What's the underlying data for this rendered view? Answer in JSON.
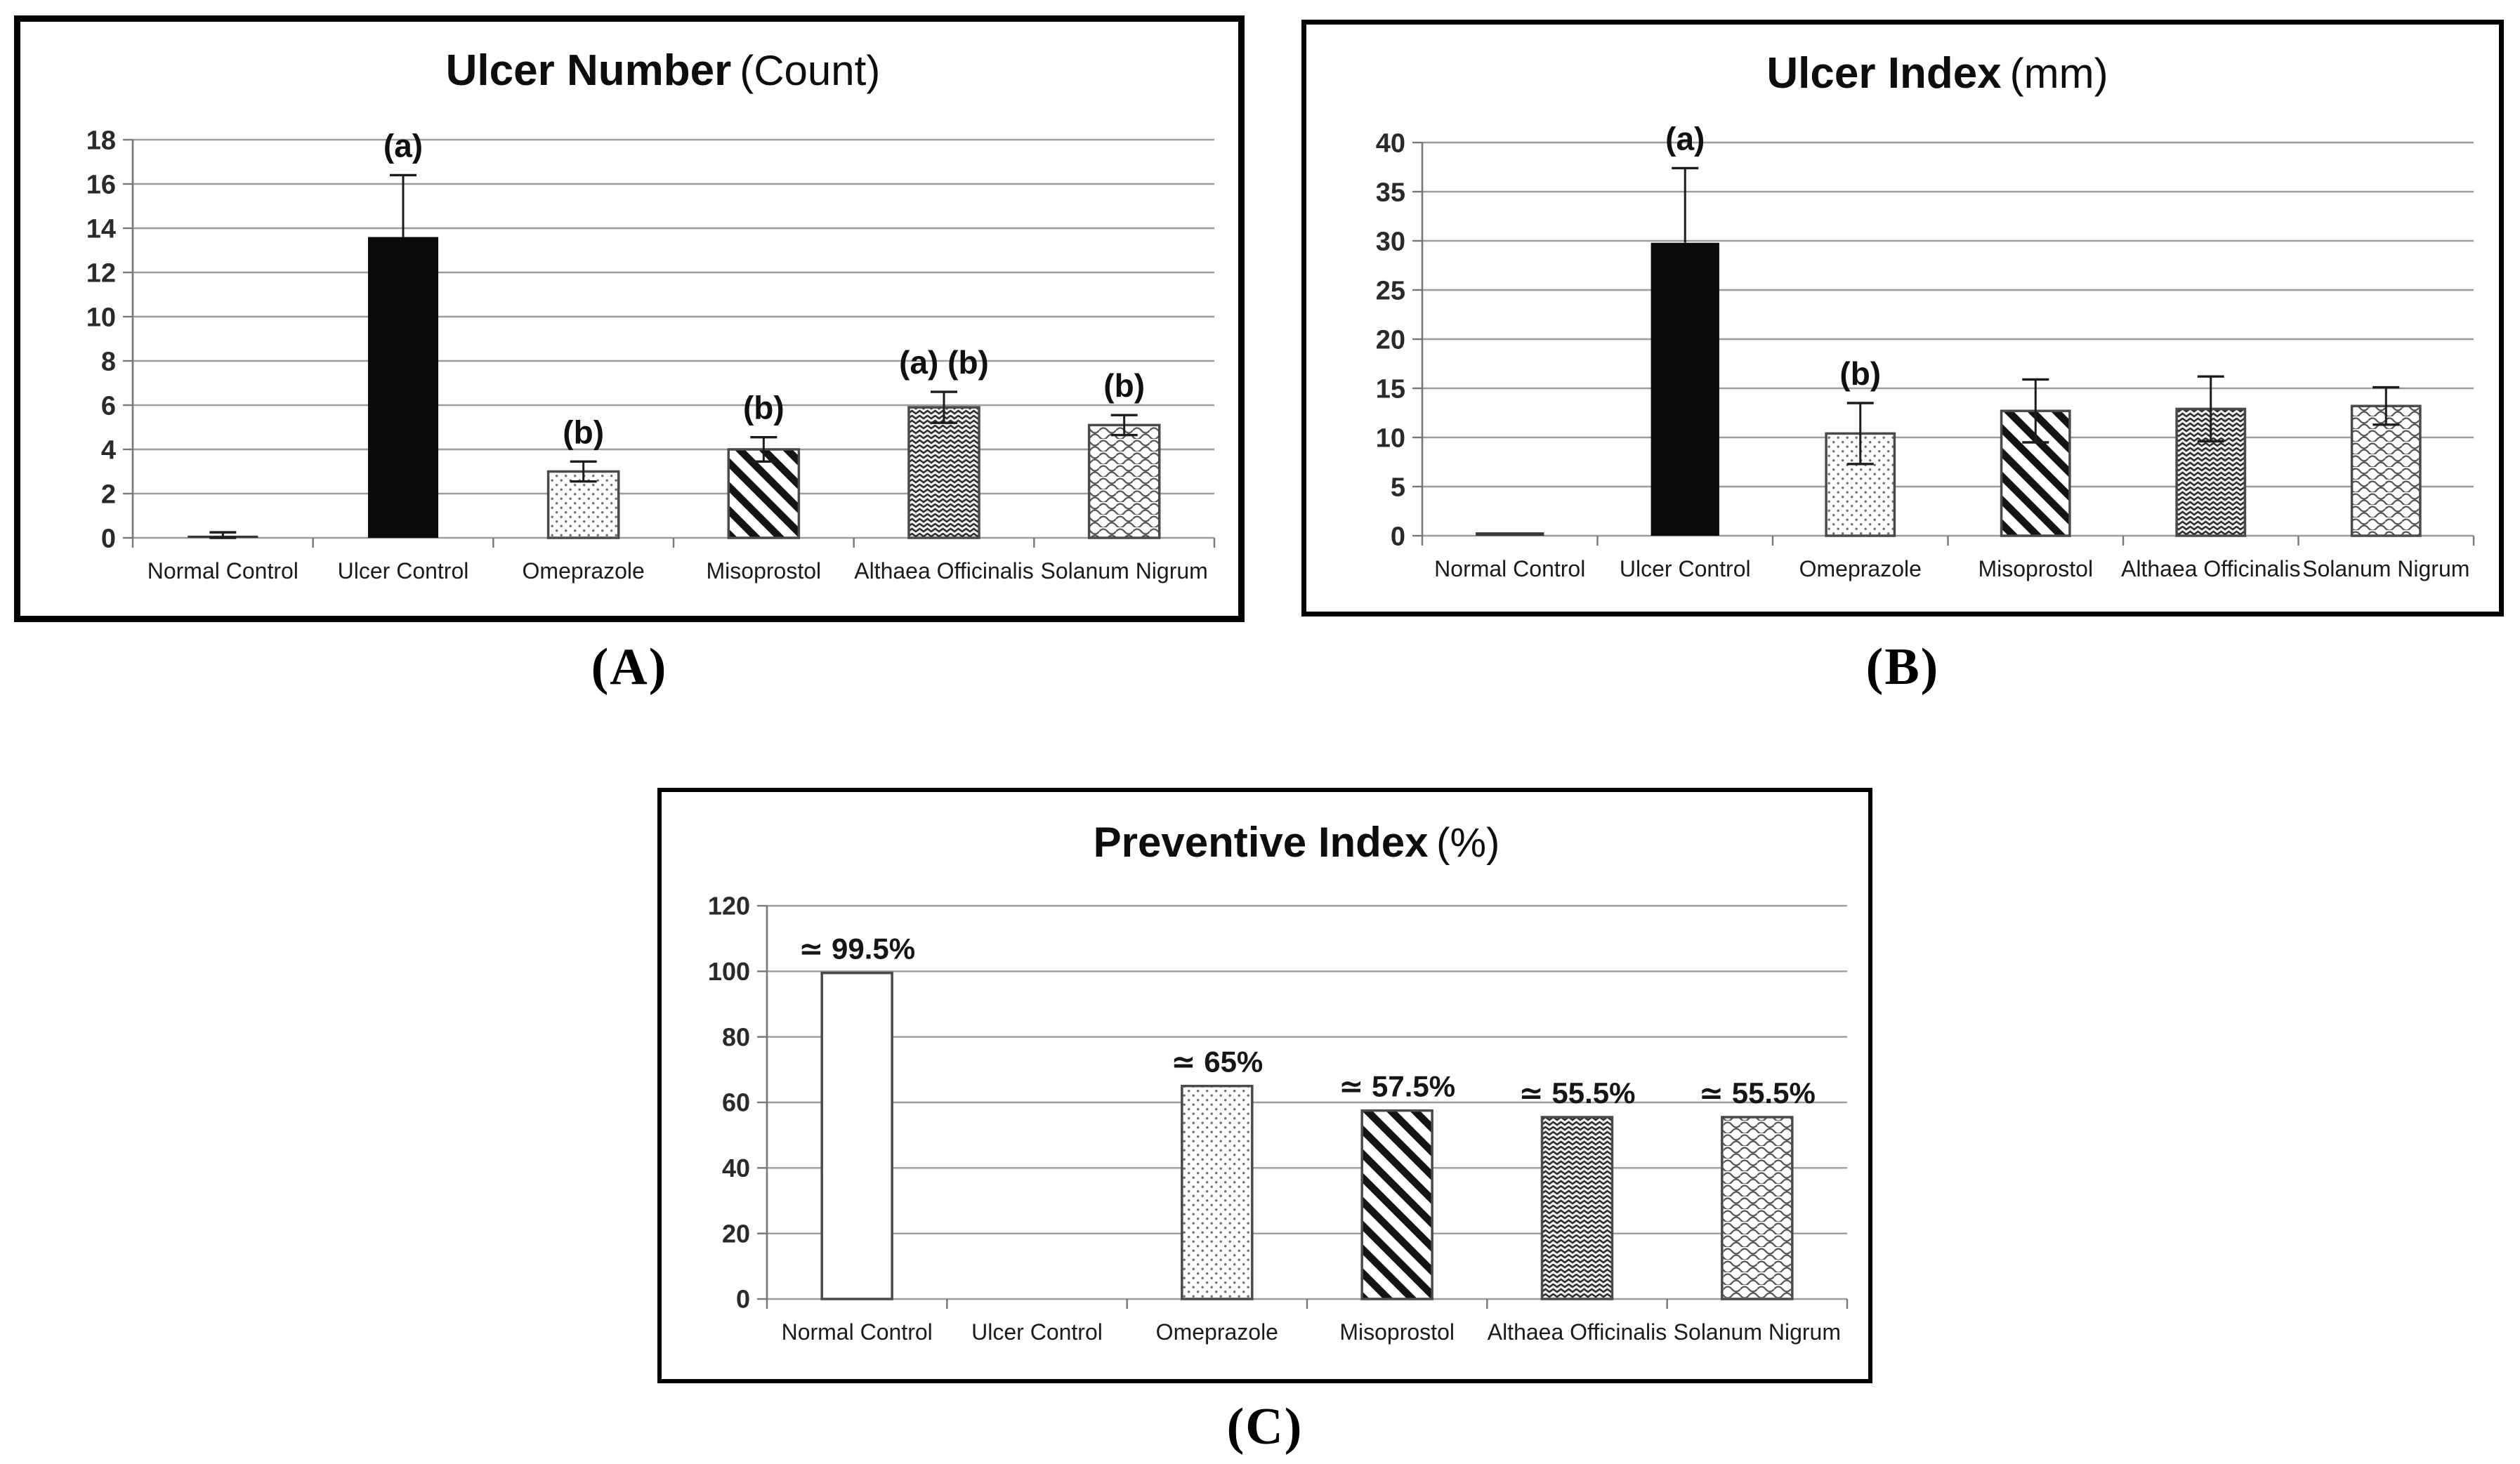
{
  "figure": {
    "background": "#ffffff",
    "captions": {
      "a": "(A)",
      "b": "(B)",
      "c": "(C)"
    }
  },
  "colors": {
    "bar_black": "#0a0a0a",
    "bar_solid_dark": "#383838",
    "pattern_ink": "#2e2e2e",
    "grid": "#9c9c9c",
    "axis": "#777777",
    "text": "#1b1b1b",
    "error_bar": "#1c1c1c"
  },
  "chart_data": [
    {
      "id": "A",
      "type": "bar",
      "title": "Ulcer Number",
      "title_suffix": "(Count)",
      "caption": "(A)",
      "ylim": [
        0,
        18
      ],
      "ystep": 2,
      "yticks": [
        0,
        2,
        4,
        6,
        8,
        10,
        12,
        14,
        16,
        18
      ],
      "grid": true,
      "legend": "none",
      "categories": [
        "Normal Control",
        "Ulcer Control",
        "Omeprazole",
        "Misoprostol",
        "Althaea Officinalis",
        "Solanum Nigrum"
      ],
      "values": [
        0.1,
        13.6,
        3.0,
        4.0,
        5.9,
        5.1
      ],
      "errors": [
        0.15,
        2.8,
        0.45,
        0.55,
        0.7,
        0.45
      ],
      "annotations": [
        "",
        "(a)",
        "(b)",
        "(b)",
        "(a) (b)",
        "(b)"
      ],
      "bar_labels": [
        "",
        "",
        "",
        "",
        "",
        ""
      ],
      "patterns": [
        "solid-dark",
        "black",
        "dots",
        "diag",
        "zigzag",
        "waves"
      ]
    },
    {
      "id": "B",
      "type": "bar",
      "title": "Ulcer Index",
      "title_suffix": "(mm)",
      "caption": "(B)",
      "ylim": [
        0,
        40
      ],
      "ystep": 5,
      "yticks": [
        0,
        5,
        10,
        15,
        20,
        25,
        30,
        35,
        40
      ],
      "grid": true,
      "legend": "none",
      "categories": [
        "Normal Control",
        "Ulcer Control",
        "Omeprazole",
        "Misoprostol",
        "Althaea Officinalis",
        "Solanum Nigrum"
      ],
      "values": [
        0.35,
        29.8,
        10.4,
        12.7,
        12.9,
        13.2
      ],
      "errors": [
        0,
        7.6,
        3.1,
        3.2,
        3.3,
        1.9
      ],
      "annotations": [
        "",
        "(a)",
        "(b)",
        "",
        "",
        ""
      ],
      "bar_labels": [
        "",
        "",
        "",
        "",
        "",
        ""
      ],
      "patterns": [
        "solid-dark",
        "black",
        "dots",
        "diag",
        "zigzag",
        "waves"
      ]
    },
    {
      "id": "C",
      "type": "bar",
      "title": "Preventive Index",
      "title_suffix": "(%)",
      "caption": "(C)",
      "ylim": [
        0,
        120
      ],
      "ystep": 20,
      "yticks": [
        0,
        20,
        40,
        60,
        80,
        100,
        120
      ],
      "grid": true,
      "legend": "none",
      "categories": [
        "Normal Control",
        "Ulcer Control",
        "Omeprazole",
        "Misoprostol",
        "Althaea Officinalis",
        "Solanum Nigrum"
      ],
      "values": [
        99.5,
        0,
        65,
        57.5,
        55.5,
        55.5
      ],
      "errors": [
        0,
        0,
        0,
        0,
        0,
        0
      ],
      "annotations": [
        "",
        "",
        "",
        "",
        "",
        ""
      ],
      "bar_labels": [
        "≃ 99.5%",
        "",
        "≃ 65%",
        "≃ 57.5%",
        "≃ 55.5%",
        "≃ 55.5%"
      ],
      "patterns": [
        "white",
        "none",
        "dots",
        "diag",
        "zigzag",
        "waves"
      ]
    }
  ]
}
